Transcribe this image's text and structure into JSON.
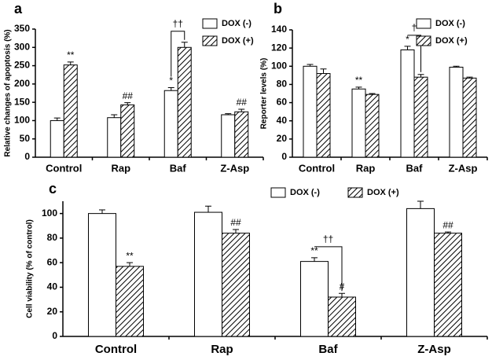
{
  "chart_data": [
    {
      "type": "bar",
      "label": "a",
      "ylabel": "Relative changes of apoptosis (%)",
      "categories": [
        "Control",
        "Rap",
        "Baf",
        "Z-Asp"
      ],
      "ylim": [
        0,
        350
      ],
      "yticks": [
        0,
        50,
        100,
        150,
        200,
        250,
        300,
        350
      ],
      "series": [
        {
          "name": "DOX (-)",
          "color": "#ffffff",
          "pattern": "solid",
          "values": [
            100,
            108,
            182,
            116
          ],
          "errors": [
            7,
            8,
            8,
            3
          ],
          "annotations": [
            null,
            null,
            "*",
            null
          ]
        },
        {
          "name": "DOX (+)",
          "color": "#ffffff",
          "pattern": "hatch",
          "values": [
            252,
            143,
            300,
            124
          ],
          "errors": [
            8,
            6,
            14,
            7
          ],
          "annotations": [
            "**",
            "##",
            null,
            "##"
          ]
        }
      ],
      "bracket_labels": [
        null,
        null,
        "††",
        null
      ]
    },
    {
      "type": "bar",
      "label": "b",
      "ylabel": "Reporter levels (%)",
      "categories": [
        "Control",
        "Rap",
        "Baf",
        "Z-Asp"
      ],
      "ylim": [
        0,
        140
      ],
      "yticks": [
        0,
        20,
        40,
        60,
        80,
        100,
        120,
        140
      ],
      "series": [
        {
          "name": "DOX (-)",
          "color": "#ffffff",
          "pattern": "solid",
          "values": [
            100,
            75,
            118,
            99
          ],
          "errors": [
            2,
            2,
            4,
            1
          ],
          "annotations": [
            null,
            "**",
            "*",
            null
          ]
        },
        {
          "name": "DOX (+)",
          "color": "#ffffff",
          "pattern": "hatch",
          "values": [
            92,
            69,
            88,
            87
          ],
          "errors": [
            5,
            1,
            3,
            1
          ],
          "annotations": [
            null,
            null,
            null,
            null
          ]
        }
      ],
      "bracket_labels": [
        null,
        null,
        "†",
        null
      ]
    },
    {
      "type": "bar",
      "label": "c",
      "ylabel": "Cell viability (% of control)",
      "categories": [
        "Control",
        "Rap",
        "Baf",
        "Z-Asp"
      ],
      "ylim": [
        0,
        110
      ],
      "yticks": [
        0,
        20,
        40,
        60,
        80,
        100
      ],
      "series": [
        {
          "name": "DOX (-)",
          "color": "#ffffff",
          "pattern": "solid",
          "values": [
            100,
            101,
            61,
            104
          ],
          "errors": [
            3,
            5,
            3,
            6
          ],
          "annotations": [
            null,
            null,
            "**",
            null
          ]
        },
        {
          "name": "DOX (+)",
          "color": "#ffffff",
          "pattern": "hatch",
          "values": [
            57,
            84,
            32,
            84
          ],
          "errors": [
            3,
            3,
            3,
            1
          ],
          "annotations": [
            "**",
            "##",
            "#",
            "##"
          ]
        }
      ],
      "bracket_labels": [
        null,
        null,
        "††",
        null
      ]
    }
  ]
}
